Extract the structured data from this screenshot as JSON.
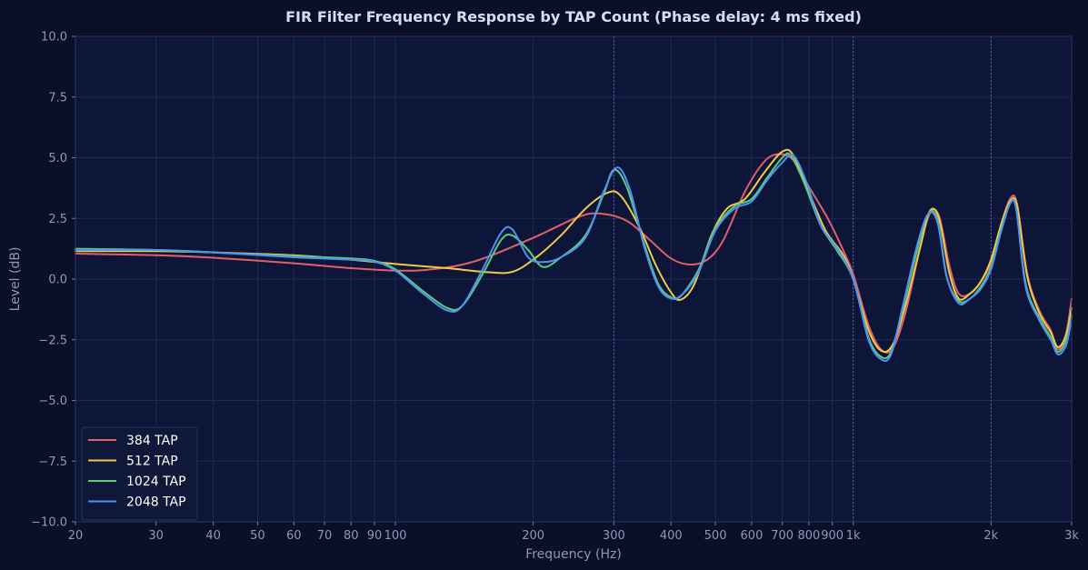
{
  "chart_data": {
    "type": "line",
    "title": "FIR Filter Frequency Response by TAP Count  (Phase delay: 4 ms fixed)",
    "xlabel": "Frequency (Hz)",
    "ylabel": "Level (dB)",
    "x_scale": "log",
    "xlim": [
      20,
      3000
    ],
    "ylim": [
      -10,
      10
    ],
    "grid": true,
    "legend_position": "lower-left",
    "x_ticks": [
      {
        "value": 20,
        "label": "20"
      },
      {
        "value": 30,
        "label": "30"
      },
      {
        "value": 40,
        "label": "40"
      },
      {
        "value": 50,
        "label": "50"
      },
      {
        "value": 60,
        "label": "60"
      },
      {
        "value": 70,
        "label": "70"
      },
      {
        "value": 80,
        "label": "80"
      },
      {
        "value": 90,
        "label": "90"
      },
      {
        "value": 100,
        "label": "100"
      },
      {
        "value": 200,
        "label": "200"
      },
      {
        "value": 300,
        "label": "300"
      },
      {
        "value": 400,
        "label": "400"
      },
      {
        "value": 500,
        "label": "500"
      },
      {
        "value": 600,
        "label": "600"
      },
      {
        "value": 700,
        "label": "700"
      },
      {
        "value": 800,
        "label": "800"
      },
      {
        "value": 900,
        "label": "900"
      },
      {
        "value": 1000,
        "label": "1k"
      },
      {
        "value": 2000,
        "label": "2k"
      },
      {
        "value": 3000,
        "label": "3k"
      }
    ],
    "y_ticks": [
      {
        "value": 10,
        "label": "10.0"
      },
      {
        "value": 7.5,
        "label": "7.5"
      },
      {
        "value": 5,
        "label": "5.0"
      },
      {
        "value": 2.5,
        "label": "2.5"
      },
      {
        "value": 0,
        "label": "0.0"
      },
      {
        "value": -2.5,
        "label": "−2.5"
      },
      {
        "value": -5,
        "label": "−5.0"
      },
      {
        "value": -7.5,
        "label": "−7.5"
      },
      {
        "value": -10,
        "label": "−10.0"
      }
    ],
    "vertical_markers": [
      300,
      1000,
      2000
    ],
    "series": [
      {
        "name": "384 TAP",
        "color": "#e0606a",
        "points": [
          [
            20,
            1.05
          ],
          [
            30,
            0.98
          ],
          [
            40,
            0.88
          ],
          [
            60,
            0.65
          ],
          [
            80,
            0.45
          ],
          [
            100,
            0.35
          ],
          [
            120,
            0.4
          ],
          [
            150,
            0.75
          ],
          [
            200,
            1.7
          ],
          [
            250,
            2.55
          ],
          [
            280,
            2.7
          ],
          [
            320,
            2.4
          ],
          [
            360,
            1.6
          ],
          [
            400,
            0.85
          ],
          [
            440,
            0.6
          ],
          [
            480,
            0.8
          ],
          [
            520,
            1.6
          ],
          [
            580,
            3.6
          ],
          [
            640,
            4.85
          ],
          [
            690,
            5.15
          ],
          [
            740,
            4.9
          ],
          [
            800,
            3.8
          ],
          [
            880,
            2.5
          ],
          [
            950,
            1.2
          ],
          [
            1000,
            0.2
          ],
          [
            1080,
            -1.9
          ],
          [
            1150,
            -2.9
          ],
          [
            1220,
            -2.85
          ],
          [
            1300,
            -1.4
          ],
          [
            1400,
            1.3
          ],
          [
            1470,
            2.7
          ],
          [
            1540,
            2.6
          ],
          [
            1620,
            0.6
          ],
          [
            1700,
            -0.6
          ],
          [
            1800,
            -0.6
          ],
          [
            1900,
            -0.1
          ],
          [
            2000,
            0.7
          ],
          [
            2100,
            2.2
          ],
          [
            2200,
            3.3
          ],
          [
            2280,
            3.1
          ],
          [
            2400,
            0.2
          ],
          [
            2550,
            -1.3
          ],
          [
            2700,
            -2.1
          ],
          [
            2800,
            -2.9
          ],
          [
            2920,
            -2.2
          ],
          [
            3000,
            -0.8
          ]
        ]
      },
      {
        "name": "512 TAP",
        "color": "#f0c94a",
        "points": [
          [
            20,
            1.15
          ],
          [
            30,
            1.15
          ],
          [
            40,
            1.1
          ],
          [
            60,
            0.98
          ],
          [
            80,
            0.8
          ],
          [
            100,
            0.62
          ],
          [
            130,
            0.45
          ],
          [
            160,
            0.28
          ],
          [
            180,
            0.3
          ],
          [
            200,
            0.8
          ],
          [
            230,
            1.8
          ],
          [
            260,
            2.9
          ],
          [
            290,
            3.55
          ],
          [
            310,
            3.45
          ],
          [
            340,
            2.2
          ],
          [
            370,
            0.6
          ],
          [
            400,
            -0.55
          ],
          [
            420,
            -0.85
          ],
          [
            450,
            -0.2
          ],
          [
            490,
            1.8
          ],
          [
            530,
            2.9
          ],
          [
            580,
            3.3
          ],
          [
            640,
            4.4
          ],
          [
            700,
            5.25
          ],
          [
            740,
            5.1
          ],
          [
            800,
            3.6
          ],
          [
            870,
            2.0
          ],
          [
            950,
            1.0
          ],
          [
            1000,
            0.0
          ],
          [
            1080,
            -2.1
          ],
          [
            1150,
            -2.95
          ],
          [
            1220,
            -2.7
          ],
          [
            1300,
            -1.1
          ],
          [
            1400,
            1.3
          ],
          [
            1470,
            2.8
          ],
          [
            1540,
            2.5
          ],
          [
            1620,
            0.3
          ],
          [
            1700,
            -0.8
          ],
          [
            1800,
            -0.6
          ],
          [
            1900,
            -0.1
          ],
          [
            2000,
            0.8
          ],
          [
            2100,
            2.2
          ],
          [
            2200,
            3.2
          ],
          [
            2280,
            3.0
          ],
          [
            2400,
            0.1
          ],
          [
            2550,
            -1.4
          ],
          [
            2700,
            -2.2
          ],
          [
            2800,
            -2.8
          ],
          [
            2920,
            -2.3
          ],
          [
            3000,
            -1.2
          ]
        ]
      },
      {
        "name": "1024 TAP",
        "color": "#5bcc7e",
        "points": [
          [
            20,
            1.25
          ],
          [
            30,
            1.2
          ],
          [
            40,
            1.1
          ],
          [
            60,
            0.95
          ],
          [
            80,
            0.85
          ],
          [
            90,
            0.75
          ],
          [
            100,
            0.4
          ],
          [
            115,
            -0.5
          ],
          [
            130,
            -1.2
          ],
          [
            140,
            -1.1
          ],
          [
            155,
            0.2
          ],
          [
            170,
            1.6
          ],
          [
            180,
            1.8
          ],
          [
            195,
            1.2
          ],
          [
            210,
            0.5
          ],
          [
            230,
            0.9
          ],
          [
            260,
            1.8
          ],
          [
            285,
            3.5
          ],
          [
            300,
            4.5
          ],
          [
            320,
            3.8
          ],
          [
            350,
            1.4
          ],
          [
            375,
            -0.2
          ],
          [
            400,
            -0.75
          ],
          [
            420,
            -0.7
          ],
          [
            460,
            0.4
          ],
          [
            500,
            2.1
          ],
          [
            550,
            3.0
          ],
          [
            600,
            3.3
          ],
          [
            650,
            4.2
          ],
          [
            700,
            5.0
          ],
          [
            730,
            5.1
          ],
          [
            780,
            4.0
          ],
          [
            850,
            2.2
          ],
          [
            920,
            1.2
          ],
          [
            1000,
            0.0
          ],
          [
            1080,
            -2.4
          ],
          [
            1150,
            -3.2
          ],
          [
            1210,
            -3.0
          ],
          [
            1280,
            -1.3
          ],
          [
            1380,
            1.2
          ],
          [
            1460,
            2.7
          ],
          [
            1530,
            2.4
          ],
          [
            1600,
            0.1
          ],
          [
            1700,
            -0.9
          ],
          [
            1800,
            -0.8
          ],
          [
            1900,
            -0.3
          ],
          [
            2000,
            0.5
          ],
          [
            2100,
            2.0
          ],
          [
            2200,
            3.1
          ],
          [
            2270,
            2.9
          ],
          [
            2380,
            -0.2
          ],
          [
            2550,
            -1.6
          ],
          [
            2700,
            -2.4
          ],
          [
            2800,
            -3.0
          ],
          [
            2920,
            -2.5
          ],
          [
            3000,
            -1.5
          ]
        ]
      },
      {
        "name": "2048 TAP",
        "color": "#4d94f0",
        "points": [
          [
            20,
            1.2
          ],
          [
            30,
            1.2
          ],
          [
            40,
            1.1
          ],
          [
            60,
            0.9
          ],
          [
            80,
            0.8
          ],
          [
            90,
            0.72
          ],
          [
            100,
            0.35
          ],
          [
            115,
            -0.6
          ],
          [
            130,
            -1.3
          ],
          [
            140,
            -1.1
          ],
          [
            155,
            0.4
          ],
          [
            170,
            1.9
          ],
          [
            180,
            2.05
          ],
          [
            195,
            0.9
          ],
          [
            210,
            0.7
          ],
          [
            230,
            0.9
          ],
          [
            260,
            1.7
          ],
          [
            285,
            3.6
          ],
          [
            305,
            4.6
          ],
          [
            325,
            3.7
          ],
          [
            350,
            1.3
          ],
          [
            375,
            -0.3
          ],
          [
            400,
            -0.8
          ],
          [
            425,
            -0.6
          ],
          [
            460,
            0.3
          ],
          [
            500,
            2.0
          ],
          [
            550,
            2.9
          ],
          [
            600,
            3.2
          ],
          [
            650,
            4.1
          ],
          [
            700,
            4.8
          ],
          [
            740,
            5.1
          ],
          [
            790,
            4.0
          ],
          [
            850,
            2.2
          ],
          [
            920,
            1.3
          ],
          [
            1000,
            0.0
          ],
          [
            1080,
            -2.5
          ],
          [
            1150,
            -3.3
          ],
          [
            1210,
            -3.1
          ],
          [
            1280,
            -1.2
          ],
          [
            1380,
            1.4
          ],
          [
            1460,
            2.7
          ],
          [
            1530,
            2.3
          ],
          [
            1600,
            0.1
          ],
          [
            1700,
            -1.0
          ],
          [
            1800,
            -0.8
          ],
          [
            1900,
            -0.4
          ],
          [
            2000,
            0.4
          ],
          [
            2100,
            1.9
          ],
          [
            2200,
            3.1
          ],
          [
            2270,
            2.9
          ],
          [
            2380,
            -0.3
          ],
          [
            2550,
            -1.7
          ],
          [
            2700,
            -2.5
          ],
          [
            2800,
            -3.1
          ],
          [
            2920,
            -2.7
          ],
          [
            3000,
            -1.6
          ]
        ]
      }
    ]
  }
}
